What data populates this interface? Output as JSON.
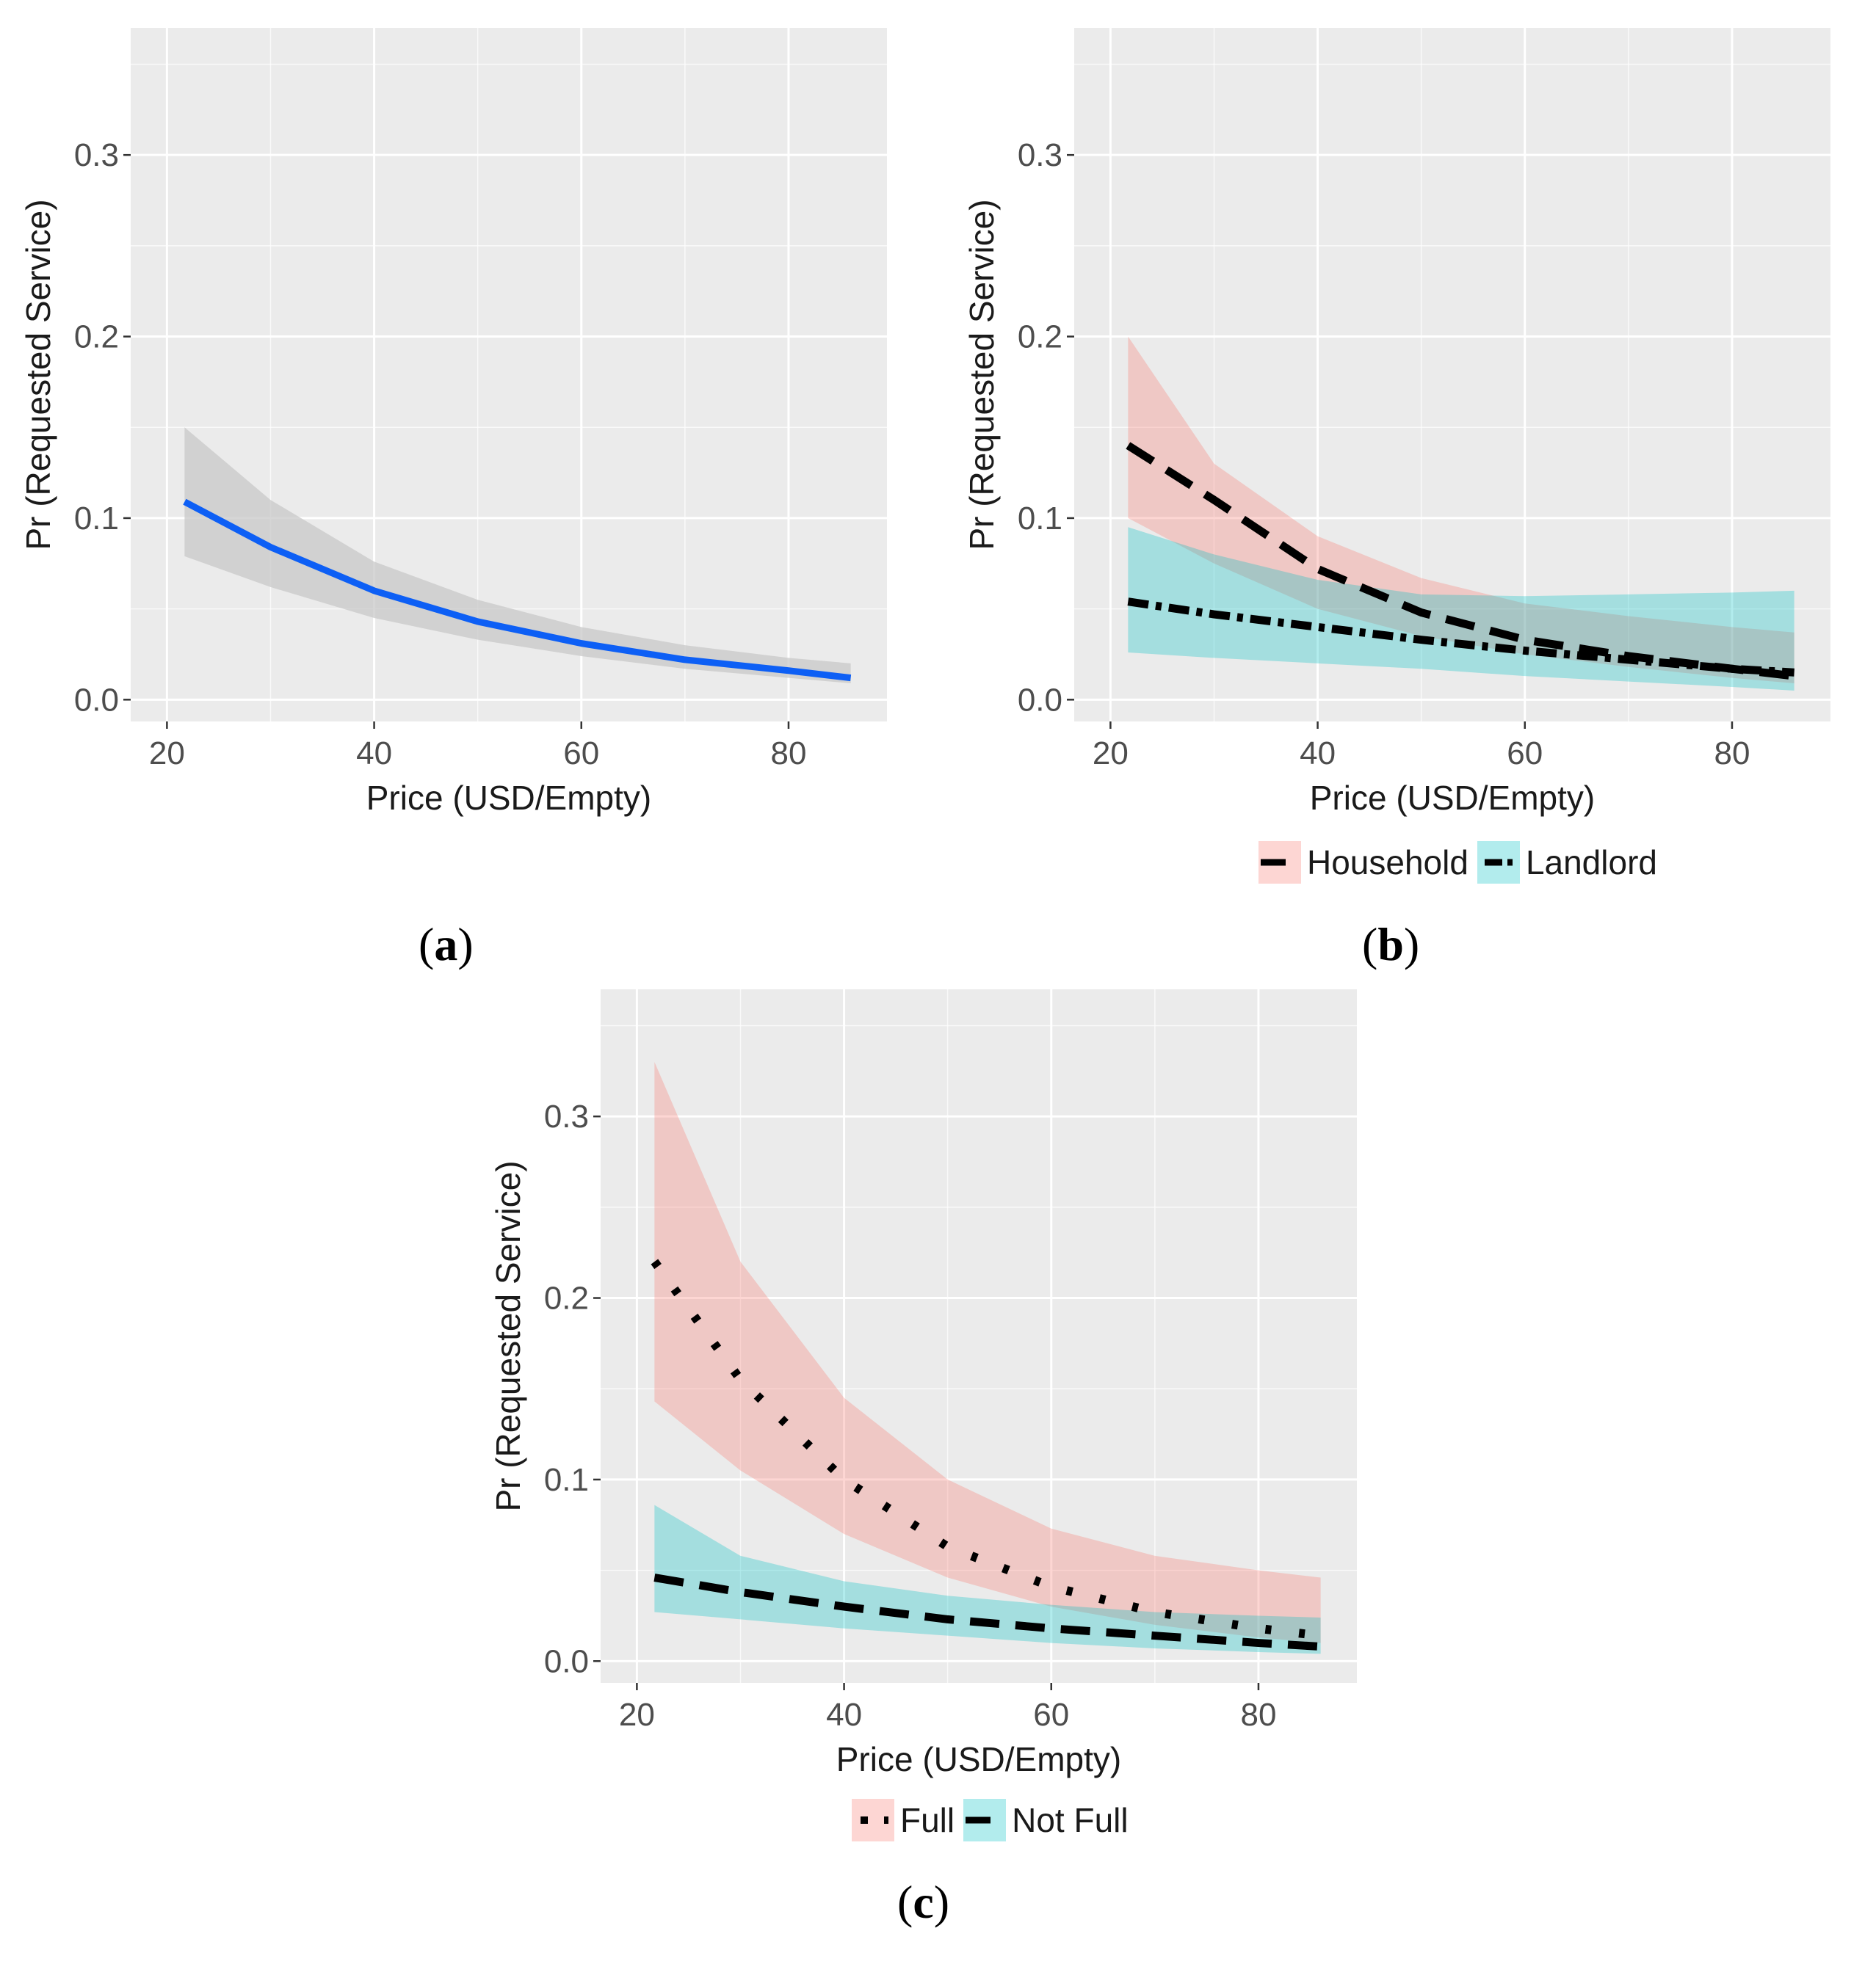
{
  "colors": {
    "panel_bg": "#EBEBEB",
    "grid_major": "#FFFFFF",
    "axis_text": "#4D4D4D",
    "title_text": "#1A1A1A",
    "line_single": "#0D5FF5",
    "band_single": "#C8C8C8",
    "band_household": "#F8766D",
    "band_landlord": "#00BFC4",
    "line_group": "#000000"
  },
  "chart_data": [
    {
      "id": "a",
      "label": "a",
      "type": "line",
      "xlabel": "Price (USD/Empty)",
      "ylabel": "Pr (Requested Service)",
      "xlim": [
        16.5,
        89.5
      ],
      "ylim": [
        -0.012,
        0.37
      ],
      "xticks": [
        20,
        40,
        60,
        80
      ],
      "yticks": [
        0.0,
        0.1,
        0.2,
        0.3
      ],
      "xtick_labels": [
        "20",
        "40",
        "60",
        "80"
      ],
      "ytick_labels": [
        "0.0",
        "0.1",
        "0.2",
        "0.3"
      ],
      "grid": true,
      "legend": null,
      "series": [
        {
          "name": "Pr",
          "color": "#0D5FF5",
          "dash": "solid",
          "x": [
            21.7,
            30,
            40,
            50,
            60,
            70,
            80,
            86
          ],
          "y": [
            0.109,
            0.084,
            0.06,
            0.043,
            0.031,
            0.022,
            0.016,
            0.012
          ],
          "lower": [
            0.079,
            0.062,
            0.045,
            0.033,
            0.024,
            0.017,
            0.012,
            0.009
          ],
          "upper": [
            0.15,
            0.11,
            0.076,
            0.055,
            0.04,
            0.03,
            0.023,
            0.02
          ],
          "band_color": "#C8C8C8"
        }
      ]
    },
    {
      "id": "b",
      "label": "b",
      "type": "line",
      "xlabel": "Price (USD/Empty)",
      "ylabel": "Pr (Requested Service)",
      "xlim": [
        16.5,
        89.5
      ],
      "ylim": [
        -0.012,
        0.37
      ],
      "xticks": [
        20,
        40,
        60,
        80
      ],
      "yticks": [
        0.0,
        0.1,
        0.2,
        0.3
      ],
      "xtick_labels": [
        "20",
        "40",
        "60",
        "80"
      ],
      "ytick_labels": [
        "0.0",
        "0.1",
        "0.2",
        "0.3"
      ],
      "grid": true,
      "legend": "bottom",
      "series": [
        {
          "name": "Household",
          "color": "#000000",
          "dash": "longdash",
          "band_color": "#F8766D",
          "x": [
            21.7,
            30,
            40,
            50,
            60,
            70,
            80,
            86
          ],
          "y": [
            0.14,
            0.11,
            0.072,
            0.048,
            0.033,
            0.024,
            0.017,
            0.013
          ],
          "lower": [
            0.1,
            0.075,
            0.05,
            0.035,
            0.025,
            0.018,
            0.012,
            0.009
          ],
          "upper": [
            0.2,
            0.13,
            0.09,
            0.067,
            0.053,
            0.046,
            0.04,
            0.037
          ]
        },
        {
          "name": "Landlord",
          "color": "#000000",
          "dash": "dashdot",
          "band_color": "#00BFC4",
          "x": [
            21.7,
            30,
            40,
            50,
            60,
            70,
            80,
            86
          ],
          "y": [
            0.054,
            0.047,
            0.04,
            0.033,
            0.027,
            0.022,
            0.017,
            0.015
          ],
          "lower": [
            0.026,
            0.023,
            0.02,
            0.017,
            0.013,
            0.01,
            0.007,
            0.005
          ],
          "upper": [
            0.095,
            0.08,
            0.066,
            0.058,
            0.057,
            0.058,
            0.059,
            0.06
          ]
        }
      ]
    },
    {
      "id": "c",
      "label": "c",
      "type": "line",
      "xlabel": "Price (USD/Empty)",
      "ylabel": "Pr (Requested Service)",
      "xlim": [
        16.5,
        89.5
      ],
      "ylim": [
        -0.012,
        0.37
      ],
      "xticks": [
        20,
        40,
        60,
        80
      ],
      "yticks": [
        0.0,
        0.1,
        0.2,
        0.3
      ],
      "xtick_labels": [
        "20",
        "40",
        "60",
        "80"
      ],
      "ytick_labels": [
        "0.0",
        "0.1",
        "0.2",
        "0.3"
      ],
      "grid": true,
      "legend": "bottom",
      "series": [
        {
          "name": "Full",
          "color": "#000000",
          "dash": "dotted",
          "band_color": "#F8766D",
          "x": [
            21.7,
            30,
            40,
            50,
            60,
            70,
            80,
            86
          ],
          "y": [
            0.22,
            0.155,
            0.1,
            0.063,
            0.041,
            0.027,
            0.018,
            0.014
          ],
          "lower": [
            0.143,
            0.105,
            0.07,
            0.046,
            0.03,
            0.02,
            0.013,
            0.01
          ],
          "upper": [
            0.33,
            0.22,
            0.145,
            0.1,
            0.073,
            0.058,
            0.05,
            0.046
          ]
        },
        {
          "name": "Not Full",
          "color": "#000000",
          "dash": "longdash",
          "band_color": "#00BFC4",
          "x": [
            21.7,
            30,
            40,
            50,
            60,
            70,
            80,
            86
          ],
          "y": [
            0.046,
            0.038,
            0.03,
            0.023,
            0.018,
            0.014,
            0.01,
            0.008
          ],
          "lower": [
            0.027,
            0.023,
            0.018,
            0.014,
            0.01,
            0.007,
            0.005,
            0.004
          ],
          "upper": [
            0.086,
            0.058,
            0.044,
            0.036,
            0.031,
            0.027,
            0.025,
            0.024
          ]
        }
      ]
    }
  ]
}
